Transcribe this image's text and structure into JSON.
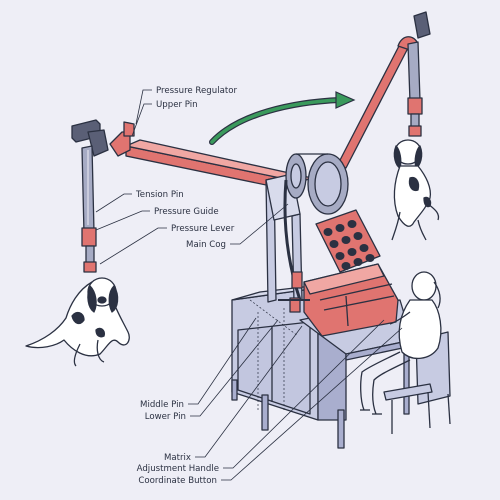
{
  "labels": {
    "pressure_regulator": "Pressure Regulator",
    "upper_pin": "Upper Pin",
    "tension_pin": "Tension Pin",
    "pressure_guide": "Pressure Guide",
    "pressure_lever": "Pressure Lever",
    "main_cog": "Main Cog",
    "middle_pin": "Middle Pin",
    "lower_pin": "Lower Pin",
    "matrix": "Matrix",
    "adjustment_handle": "Adjustment Handle",
    "coordinate_button": "Coordinate Button"
  },
  "colors": {
    "background": "#eeeef6",
    "outline": "#2b3142",
    "machine_body": "#c7cbe2",
    "machine_shadow": "#a9aece",
    "accent_red": "#e07470",
    "arrow_green": "#3a9a5c",
    "dark_pole": "#5a5f76",
    "pole_light": "#a6abc4"
  },
  "icons": {
    "motion_arrow": "curved-arrow-right"
  }
}
